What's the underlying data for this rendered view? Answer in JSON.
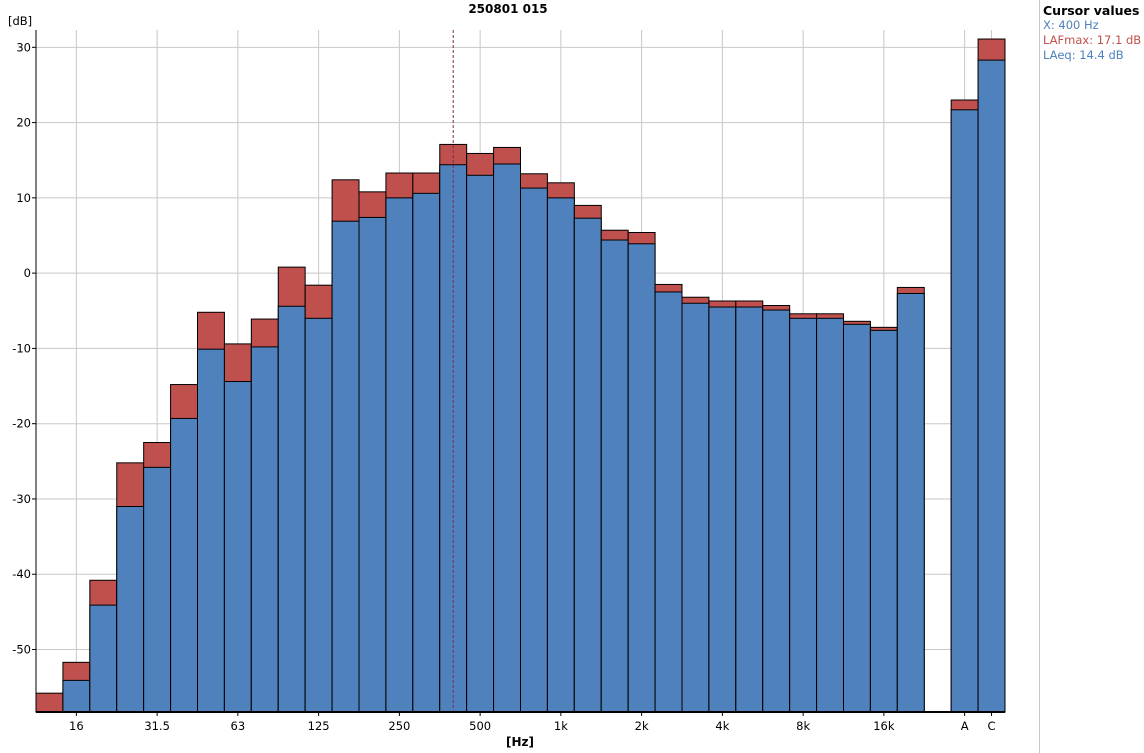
{
  "chart_data": {
    "type": "bar",
    "title": "250801 015",
    "xlabel": "[Hz]",
    "ylabel": "[dB]",
    "ylim": [
      -58.3,
      32.3
    ],
    "yticks": [
      30,
      20,
      10,
      0,
      -10,
      -20,
      -30,
      -40,
      -50
    ],
    "grid": true,
    "categories": [
      "12.5",
      "16",
      "20",
      "25",
      "31.5",
      "40",
      "50",
      "63",
      "80",
      "100",
      "125",
      "160",
      "200",
      "250",
      "315",
      "400",
      "500",
      "630",
      "800",
      "1k",
      "1.25k",
      "1.6k",
      "2k",
      "2.5k",
      "3.15k",
      "4k",
      "5k",
      "6.3k",
      "8k",
      "10k",
      "12.5k",
      "16k",
      "20k",
      "",
      "A",
      "C"
    ],
    "xtick_labels": [
      {
        "index": 1,
        "label": "16"
      },
      {
        "index": 4,
        "label": "31.5"
      },
      {
        "index": 7,
        "label": "63"
      },
      {
        "index": 10,
        "label": "125"
      },
      {
        "index": 13,
        "label": "250"
      },
      {
        "index": 16,
        "label": "500"
      },
      {
        "index": 19,
        "label": "1k"
      },
      {
        "index": 22,
        "label": "2k"
      },
      {
        "index": 25,
        "label": "4k"
      },
      {
        "index": 28,
        "label": "8k"
      },
      {
        "index": 31,
        "label": "16k"
      },
      {
        "index": 34,
        "label": "A"
      },
      {
        "index": 35,
        "label": "C"
      }
    ],
    "series": [
      {
        "name": "LAFmax",
        "color": "#c0504d",
        "values": [
          -55.8,
          -51.7,
          -40.8,
          -25.2,
          -22.5,
          -14.8,
          -5.2,
          -9.4,
          -6.1,
          0.8,
          -1.6,
          12.4,
          10.8,
          13.3,
          13.3,
          17.1,
          15.9,
          16.7,
          13.2,
          12.0,
          9.0,
          5.7,
          5.4,
          -1.5,
          -3.2,
          -3.7,
          -3.7,
          -4.3,
          -5.4,
          -5.4,
          -6.4,
          -7.2,
          -1.9,
          null,
          23.0,
          31.1
        ]
      },
      {
        "name": "LAeq",
        "color": "#4f81bd",
        "values": [
          null,
          -54.1,
          -44.1,
          -31.0,
          -25.8,
          -19.3,
          -10.1,
          -14.4,
          -9.8,
          -4.4,
          -6.0,
          6.9,
          7.4,
          10.0,
          10.6,
          14.4,
          13.0,
          14.5,
          11.3,
          10.0,
          7.3,
          4.4,
          3.9,
          -2.5,
          -4.0,
          -4.5,
          -4.5,
          -4.9,
          -6.0,
          -6.0,
          -6.8,
          -7.6,
          -2.7,
          null,
          21.7,
          28.3
        ]
      }
    ],
    "cursor": {
      "index": 15
    }
  },
  "legend": {
    "title": "Cursor values",
    "x": "X: 400 Hz",
    "lafmax": "LAFmax: 17.1 dB",
    "laeq": "LAeq: 14.4 dB"
  }
}
